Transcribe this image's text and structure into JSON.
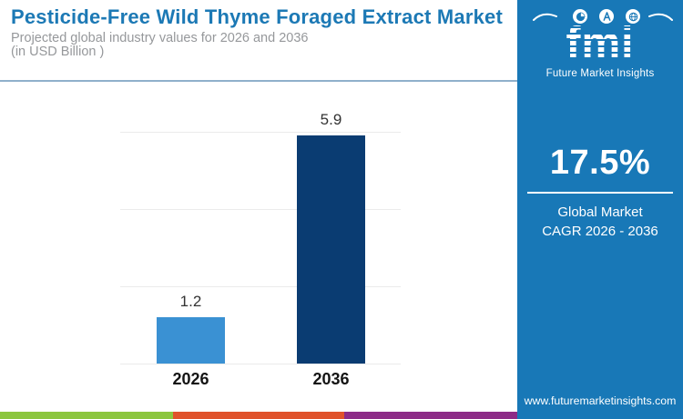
{
  "header": {
    "title": "Pesticide-Free Wild Thyme Foraged Extract Market",
    "subtitle_lines": [
      "Projected global industry values for 2026 and 2036",
      "(in USD Billion )"
    ]
  },
  "chart_data": {
    "type": "bar",
    "categories": [
      "2026",
      "2036"
    ],
    "values": [
      1.2,
      5.9
    ],
    "title": "Pesticide-Free Wild Thyme Foraged Extract Market",
    "xlabel": "",
    "ylabel": "",
    "unit": "USD Billion",
    "ylim": [
      0,
      6
    ],
    "ytick_step": 2,
    "grid": true,
    "legend": "none",
    "bar_colors": [
      "#3a91d3",
      "#0a3c72"
    ]
  },
  "sidebar": {
    "logo": {
      "text": "fmi",
      "tagline": "Future Market Insights",
      "icons": [
        "pie-chart",
        "compass",
        "globe"
      ]
    },
    "stat": {
      "value": "17.5%",
      "label_line1": "Global Market",
      "label_line2": "CAGR 2026 - 2036"
    },
    "website": "www.futuremarketinsights.com",
    "bg_color": "#1878b7"
  },
  "colors": {
    "title_blue": "#1c79b5",
    "subtitle_gray": "#96989b",
    "separator": "#8fb0cb",
    "gridline": "#ebebeb",
    "strip_green": "#8cc63f",
    "strip_orange": "#e0522b",
    "strip_purple": "#8d2b87"
  }
}
